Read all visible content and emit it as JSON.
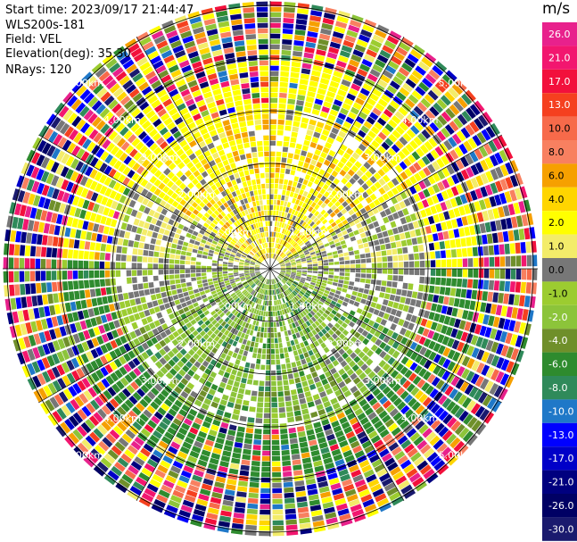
{
  "header": {
    "start_time": "Start time: 2023/09/17 21:44:47",
    "instrument": "WLS200s-181",
    "field": "Field: VEL",
    "elevation": "Elevation(deg): 35.30",
    "nrays": "NRays: 120"
  },
  "colorbar": {
    "unit": "m/s",
    "entries": [
      {
        "label": "26.0",
        "color": "#e8218c"
      },
      {
        "label": "21.0",
        "color": "#f2166f"
      },
      {
        "label": "17.0",
        "color": "#f2103c"
      },
      {
        "label": "13.0",
        "color": "#f5401f"
      },
      {
        "label": "10.0",
        "color": "#f76a4a"
      },
      {
        "label": "8.0",
        "color": "#f88060"
      },
      {
        "label": "6.0",
        "color": "#f6a000"
      },
      {
        "label": "4.0",
        "color": "#ffd500"
      },
      {
        "label": "2.0",
        "color": "#ffff00"
      },
      {
        "label": "1.0",
        "color": "#f3ec6a"
      },
      {
        "label": "0.0",
        "color": "#777777"
      },
      {
        "label": "-1.0",
        "color": "#9ccc30"
      },
      {
        "label": "-2.0",
        "color": "#8cc43a"
      },
      {
        "label": "-4.0",
        "color": "#6f8f2a"
      },
      {
        "label": "-6.0",
        "color": "#2e8b2e"
      },
      {
        "label": "-8.0",
        "color": "#2f8a5a"
      },
      {
        "label": "-10.0",
        "color": "#1f78c8"
      },
      {
        "label": "-13.0",
        "color": "#0000ff"
      },
      {
        "label": "-17.0",
        "color": "#0000c8"
      },
      {
        "label": "-21.0",
        "color": "#00007f"
      },
      {
        "label": "-26.0",
        "color": "#000064"
      },
      {
        "label": "-30.0",
        "color": "#1a1a6e"
      }
    ]
  },
  "range_rings": {
    "labels": [
      "1.00km",
      "2.00km",
      "3.00km",
      "4.00km",
      "5.00km"
    ]
  }
}
